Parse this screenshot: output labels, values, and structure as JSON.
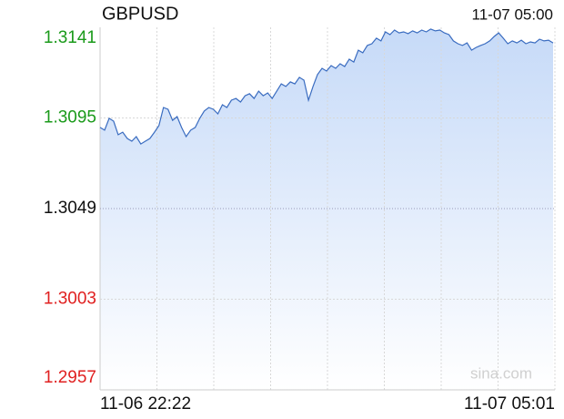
{
  "chart_data": {
    "type": "line",
    "title": "GBPUSD",
    "timestamp": "11-07 05:00",
    "watermark": "sina.com",
    "x_labels": [
      "11-06 22:22",
      "11-07 05:01"
    ],
    "color": "#3a6cc0",
    "area_color": "#c6daf8",
    "up_color": "#1a9a1a",
    "down_color": "#e02020",
    "flat_color": "#111111",
    "ylim": [
      1.2957,
      1.3141
    ],
    "yticks": [
      1.3141,
      1.3095,
      1.3049,
      1.3003,
      1.2957
    ],
    "grid": true,
    "values": [
      1.30902,
      1.30888,
      1.30948,
      1.30934,
      1.30865,
      1.30878,
      1.30846,
      1.30832,
      1.30855,
      1.30818,
      1.30832,
      1.30846,
      1.30878,
      1.30911,
      1.31003,
      1.30994,
      1.30938,
      1.30957,
      1.30902,
      1.30855,
      1.30888,
      1.30902,
      1.30948,
      1.30985,
      1.31003,
      1.30994,
      1.30971,
      1.31017,
      1.31003,
      1.3104,
      1.31049,
      1.31031,
      1.31063,
      1.31073,
      1.31049,
      1.31086,
      1.31063,
      1.31077,
      1.31049,
      1.31086,
      1.31123,
      1.3111,
      1.31133,
      1.31123,
      1.31156,
      1.31142,
      1.3104,
      1.3111,
      1.3117,
      1.31202,
      1.31188,
      1.31216,
      1.31202,
      1.31225,
      1.31211,
      1.31248,
      1.31234,
      1.31294,
      1.31281,
      1.31318,
      1.31327,
      1.31355,
      1.31341,
      1.31387,
      1.31373,
      1.31396,
      1.31382,
      1.31387,
      1.31378,
      1.31392,
      1.31382,
      1.31396,
      1.31387,
      1.31401,
      1.31392,
      1.31396,
      1.31382,
      1.31373,
      1.31341,
      1.31327,
      1.31318,
      1.31331,
      1.31294,
      1.31308,
      1.31318,
      1.31327,
      1.31341,
      1.31364,
      1.31382,
      1.31355,
      1.31327,
      1.31341,
      1.31331,
      1.31345,
      1.31327,
      1.31336,
      1.31331,
      1.3135,
      1.31341,
      1.31345,
      1.31331
    ]
  }
}
